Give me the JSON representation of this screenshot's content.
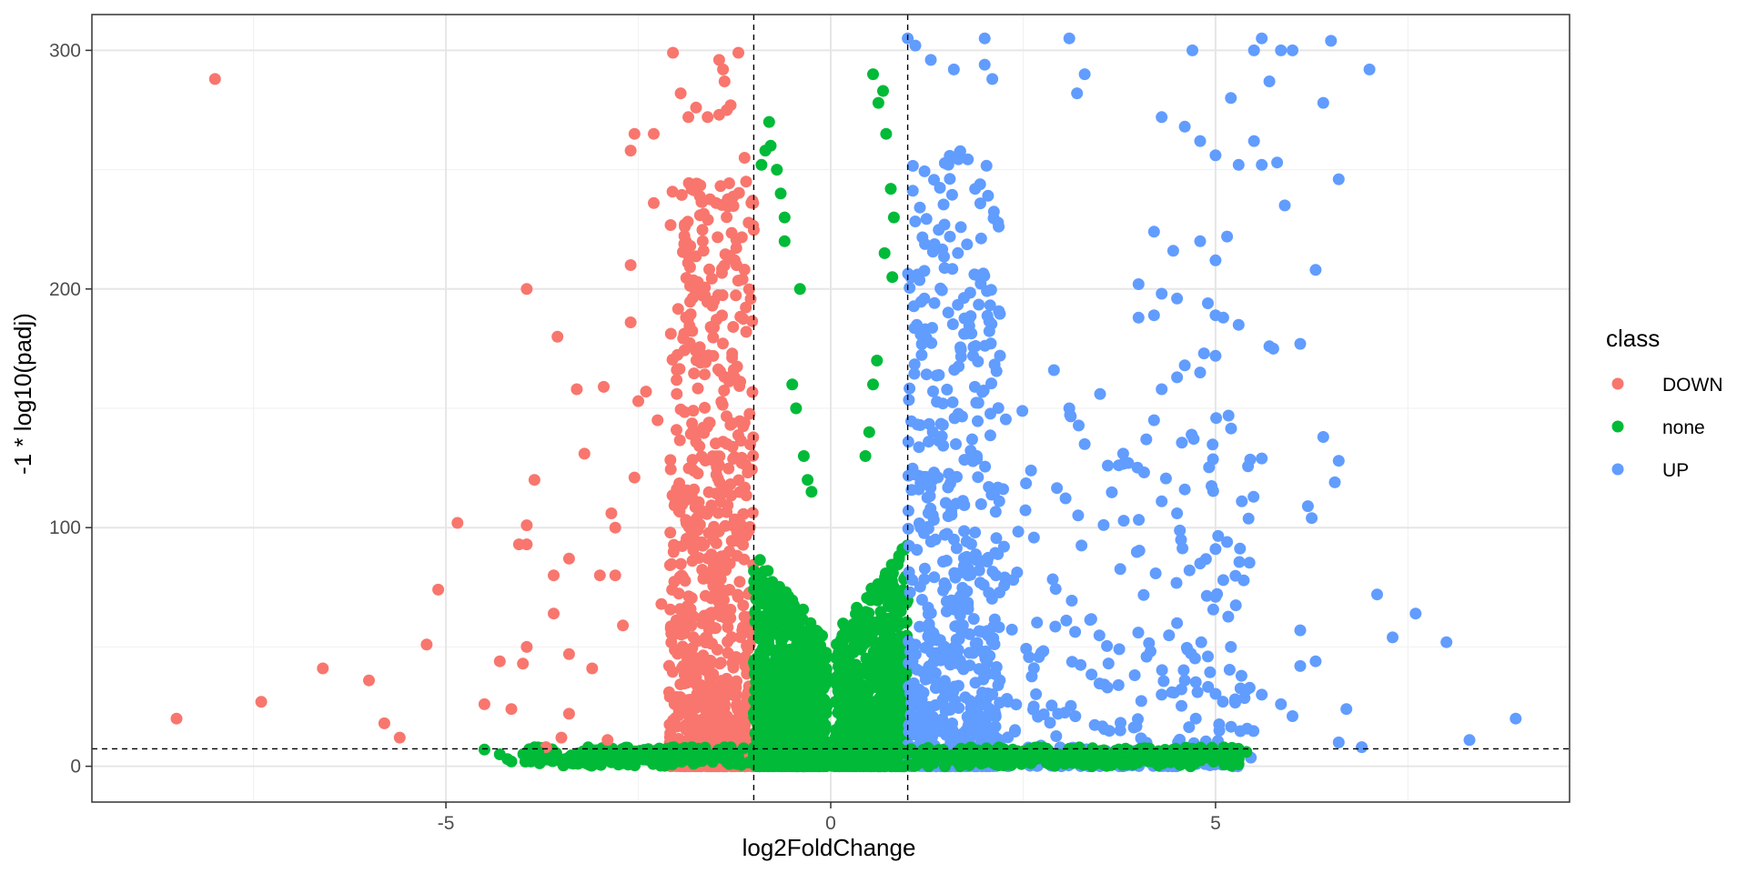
{
  "chart_data": {
    "type": "scatter",
    "title": "",
    "xlabel": "log2FoldChange",
    "ylabel": "-1 * log10(padj)",
    "xlim": [
      -9.6,
      9.6
    ],
    "ylim": [
      -15,
      315
    ],
    "x_ticks": [
      -5,
      0,
      5
    ],
    "x_tick_labels": [
      "-5",
      "0",
      "5"
    ],
    "y_ticks": [
      0,
      100,
      200,
      300
    ],
    "y_tick_labels": [
      "0",
      "100",
      "200",
      "300"
    ],
    "grid": true,
    "threshold_lines": {
      "x": [
        -1,
        1
      ],
      "y": [
        7.3
      ]
    },
    "legend": {
      "title": "class",
      "placement": "right",
      "entries": [
        "DOWN",
        "none",
        "UP"
      ]
    },
    "series": [
      {
        "name": "DOWN",
        "color": "#F8766D"
      },
      {
        "name": "none",
        "color": "#00BA38"
      },
      {
        "name": "UP",
        "color": "#619CFF"
      }
    ],
    "outliers": {
      "DOWN": [
        [
          -8.5,
          20
        ],
        [
          -8.0,
          288
        ],
        [
          -7.4,
          27
        ],
        [
          -6.6,
          41
        ],
        [
          -6.0,
          36
        ],
        [
          -5.8,
          18
        ],
        [
          -5.6,
          12
        ],
        [
          -5.25,
          51
        ],
        [
          -5.1,
          74
        ],
        [
          -4.85,
          102
        ],
        [
          -4.5,
          26
        ],
        [
          -4.3,
          44
        ],
        [
          -4.15,
          24
        ],
        [
          -4.05,
          93
        ],
        [
          -4.0,
          43
        ],
        [
          -3.95,
          200
        ],
        [
          -3.95,
          93
        ],
        [
          -3.95,
          101
        ],
        [
          -3.95,
          50
        ],
        [
          -3.85,
          120
        ],
        [
          -3.7,
          8
        ],
        [
          -3.6,
          64
        ],
        [
          -3.6,
          80
        ],
        [
          -3.55,
          180
        ],
        [
          -3.5,
          12
        ],
        [
          -3.4,
          22
        ],
        [
          -3.4,
          87
        ],
        [
          -3.4,
          47
        ],
        [
          -3.3,
          158
        ],
        [
          -3.2,
          131
        ],
        [
          -3.1,
          41
        ],
        [
          -3.0,
          80
        ],
        [
          -2.95,
          159
        ],
        [
          -2.9,
          11
        ],
        [
          -2.85,
          106
        ],
        [
          -2.8,
          100
        ],
        [
          -2.8,
          80
        ],
        [
          -2.7,
          59
        ],
        [
          -2.6,
          258
        ],
        [
          -2.6,
          186
        ],
        [
          -2.6,
          210
        ],
        [
          -2.55,
          265
        ],
        [
          -2.55,
          121
        ],
        [
          -2.5,
          153
        ],
        [
          -2.4,
          157
        ],
        [
          -2.3,
          265
        ],
        [
          -2.3,
          236
        ],
        [
          -2.25,
          145
        ],
        [
          -2.2,
          68
        ],
        [
          -2.05,
          299
        ],
        [
          -1.95,
          282
        ],
        [
          -1.85,
          272
        ],
        [
          -1.75,
          276
        ],
        [
          -1.6,
          272
        ],
        [
          -1.45,
          273
        ],
        [
          -1.45,
          296
        ],
        [
          -1.4,
          292
        ],
        [
          -1.38,
          287
        ],
        [
          -1.35,
          275
        ],
        [
          -1.3,
          277
        ],
        [
          -1.2,
          299
        ],
        [
          -1.12,
          255
        ],
        [
          -1.1,
          245
        ]
      ],
      "none": [
        [
          -4.5,
          7
        ],
        [
          -4.3,
          5
        ],
        [
          -4.2,
          3
        ],
        [
          -4.15,
          2
        ],
        [
          -3.8,
          6
        ],
        [
          -0.9,
          252
        ],
        [
          -0.85,
          258
        ],
        [
          -0.8,
          270
        ],
        [
          -0.78,
          260
        ],
        [
          -0.7,
          250
        ],
        [
          -0.65,
          240
        ],
        [
          -0.6,
          230
        ],
        [
          -0.6,
          220
        ],
        [
          -0.4,
          200
        ],
        [
          -0.5,
          160
        ],
        [
          -0.45,
          150
        ],
        [
          -0.35,
          130
        ],
        [
          -0.3,
          120
        ],
        [
          -0.25,
          115
        ],
        [
          0.55,
          290
        ],
        [
          0.62,
          278
        ],
        [
          0.68,
          283
        ],
        [
          0.72,
          265
        ],
        [
          0.78,
          242
        ],
        [
          0.82,
          230
        ],
        [
          0.7,
          215
        ],
        [
          0.8,
          205
        ],
        [
          0.6,
          170
        ],
        [
          0.55,
          160
        ],
        [
          0.5,
          140
        ],
        [
          0.45,
          130
        ],
        [
          5.3,
          3
        ],
        [
          5.4,
          6
        ],
        [
          5.1,
          5
        ],
        [
          4.7,
          4
        ],
        [
          4.5,
          6
        ]
      ],
      "UP": [
        [
          1.0,
          305
        ],
        [
          1.1,
          302
        ],
        [
          1.3,
          296
        ],
        [
          1.6,
          292
        ],
        [
          2.0,
          305
        ],
        [
          2.0,
          294
        ],
        [
          2.1,
          288
        ],
        [
          3.1,
          305
        ],
        [
          3.2,
          282
        ],
        [
          3.3,
          290
        ],
        [
          4.7,
          300
        ],
        [
          5.6,
          305
        ],
        [
          5.5,
          300
        ],
        [
          5.85,
          300
        ],
        [
          6.0,
          300
        ],
        [
          6.5,
          304
        ],
        [
          7.0,
          292
        ],
        [
          5.2,
          280
        ],
        [
          5.7,
          287
        ],
        [
          6.4,
          278
        ],
        [
          4.3,
          272
        ],
        [
          4.6,
          268
        ],
        [
          4.8,
          262
        ],
        [
          5.0,
          256
        ],
        [
          5.3,
          252
        ],
        [
          5.5,
          262
        ],
        [
          5.6,
          252
        ],
        [
          5.8,
          253
        ],
        [
          5.9,
          235
        ],
        [
          6.6,
          246
        ],
        [
          6.3,
          208
        ],
        [
          4.2,
          224
        ],
        [
          4.45,
          216
        ],
        [
          4.8,
          220
        ],
        [
          5.0,
          212
        ],
        [
          5.15,
          222
        ],
        [
          4.0,
          202
        ],
        [
          4.3,
          198
        ],
        [
          4.2,
          189
        ],
        [
          4.0,
          188
        ],
        [
          4.5,
          196
        ],
        [
          4.9,
          194
        ],
        [
          5.0,
          189
        ],
        [
          5.1,
          188
        ],
        [
          5.3,
          185
        ],
        [
          5.7,
          176
        ],
        [
          5.75,
          175
        ],
        [
          6.1,
          177
        ],
        [
          4.85,
          173
        ],
        [
          5.0,
          172
        ],
        [
          4.6,
          168
        ],
        [
          4.8,
          165
        ],
        [
          4.5,
          163
        ],
        [
          4.3,
          158
        ],
        [
          3.5,
          156
        ],
        [
          2.9,
          166
        ],
        [
          3.1,
          150
        ],
        [
          3.3,
          135
        ],
        [
          4.2,
          145
        ],
        [
          4.1,
          137
        ],
        [
          3.8,
          131
        ],
        [
          3.6,
          126
        ],
        [
          4.6,
          116
        ],
        [
          4.3,
          111
        ],
        [
          4.5,
          106
        ],
        [
          6.4,
          138
        ],
        [
          6.6,
          128
        ],
        [
          6.55,
          119
        ],
        [
          6.2,
          109
        ],
        [
          6.25,
          104
        ],
        [
          5.6,
          129
        ],
        [
          5.0,
          91
        ],
        [
          5.15,
          94
        ],
        [
          5.1,
          78
        ],
        [
          5.0,
          71
        ],
        [
          4.8,
          85
        ],
        [
          4.5,
          60
        ],
        [
          6.1,
          57
        ],
        [
          7.1,
          72
        ],
        [
          7.3,
          54
        ],
        [
          7.6,
          64
        ],
        [
          8.0,
          52
        ],
        [
          6.7,
          24
        ],
        [
          8.9,
          20
        ],
        [
          8.3,
          11
        ],
        [
          6.9,
          8
        ],
        [
          6.6,
          10
        ],
        [
          6.1,
          42
        ],
        [
          6.3,
          44
        ],
        [
          5.85,
          26
        ],
        [
          5.6,
          30
        ],
        [
          6.0,
          21
        ],
        [
          5.2,
          50
        ],
        [
          5.4,
          32
        ],
        [
          4.9,
          46
        ],
        [
          4.6,
          36
        ],
        [
          4.3,
          30
        ]
      ]
    },
    "bulk_clusters": [
      {
        "class": "DOWN",
        "x_range": [
          -2.1,
          -1.0
        ],
        "y_max": 245,
        "count": 900
      },
      {
        "class": "none",
        "x_range": [
          -1.0,
          -0.05
        ],
        "y_max": 190,
        "count": 1000
      },
      {
        "class": "none",
        "x_range": [
          0.05,
          1.0
        ],
        "y_max": 195,
        "count": 1000
      },
      {
        "class": "UP",
        "x_range": [
          1.0,
          2.2
        ],
        "y_max": 260,
        "count": 700
      },
      {
        "class": "UP",
        "x_range": [
          2.2,
          5.5
        ],
        "y_max": 150,
        "count": 260
      },
      {
        "class": "none",
        "x_range": [
          -4.0,
          5.3
        ],
        "y_max": 8,
        "count": 650
      }
    ]
  }
}
